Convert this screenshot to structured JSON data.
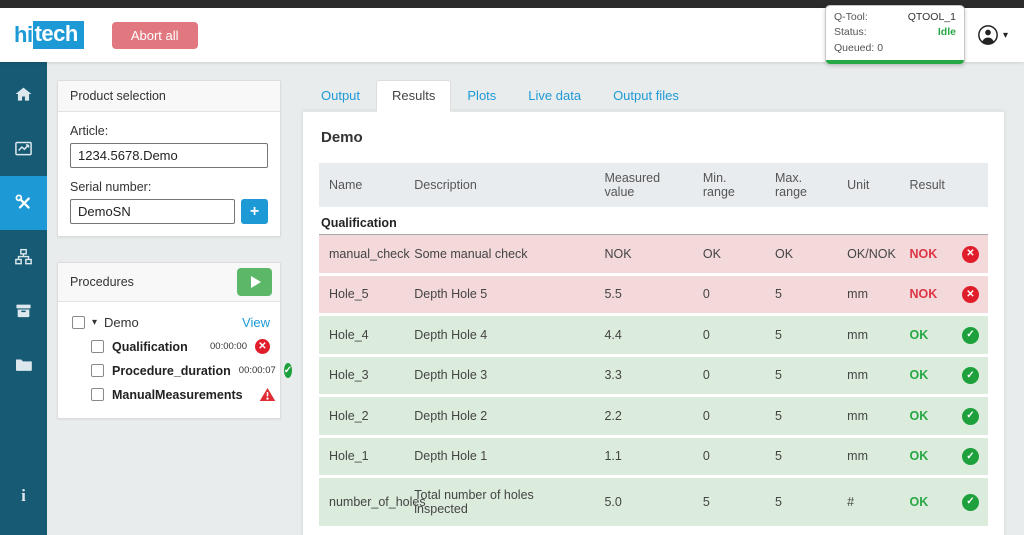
{
  "header": {
    "logo_part1": "hi",
    "logo_part2": "tech",
    "abort_label": "Abort all",
    "qtool": {
      "label": "Q-Tool:",
      "value": "QTOOL_1"
    },
    "status": {
      "label": "Status:",
      "value": "Idle"
    },
    "queued": {
      "label": "Queued:",
      "value": "0"
    }
  },
  "sidebar": {
    "active_item": "tools",
    "items": [
      "home",
      "chart",
      "tools",
      "network",
      "archive",
      "folder",
      "info"
    ]
  },
  "product_selection": {
    "title": "Product selection",
    "article_label": "Article:",
    "article_value": "1234.5678.Demo",
    "serial_label": "Serial number:",
    "serial_value": "DemoSN"
  },
  "procedures": {
    "title": "Procedures",
    "parent": {
      "label": "Demo",
      "view_link": "View"
    },
    "children": [
      {
        "label": "Qualification",
        "time": "00:00:00",
        "status": "nok"
      },
      {
        "label": "Procedure_duration",
        "time": "00:00:07",
        "status": "ok"
      },
      {
        "label": "ManualMeasurements",
        "time": "",
        "status": "warning"
      }
    ]
  },
  "tabs": [
    {
      "label": "Output",
      "active": false
    },
    {
      "label": "Results",
      "active": true
    },
    {
      "label": "Plots",
      "active": false
    },
    {
      "label": "Live data",
      "active": false
    },
    {
      "label": "Output files",
      "active": false
    }
  ],
  "results": {
    "title": "Demo",
    "columns": [
      "Name",
      "Description",
      "Measured value",
      "Min. range",
      "Max. range",
      "Unit",
      "Result"
    ],
    "group_label": "Qualification",
    "rows": [
      {
        "name": "manual_check",
        "description": "Some manual check",
        "measured": "NOK",
        "min": "OK",
        "max": "OK",
        "unit": "OK/NOK",
        "result": "NOK",
        "status": "nok"
      },
      {
        "name": "Hole_5",
        "description": "Depth Hole 5",
        "measured": "5.5",
        "min": "0",
        "max": "5",
        "unit": "mm",
        "result": "NOK",
        "status": "nok"
      },
      {
        "name": "Hole_4",
        "description": "Depth Hole 4",
        "measured": "4.4",
        "min": "0",
        "max": "5",
        "unit": "mm",
        "result": "OK",
        "status": "ok"
      },
      {
        "name": "Hole_3",
        "description": "Depth Hole 3",
        "measured": "3.3",
        "min": "0",
        "max": "5",
        "unit": "mm",
        "result": "OK",
        "status": "ok"
      },
      {
        "name": "Hole_2",
        "description": "Depth Hole 2",
        "measured": "2.2",
        "min": "0",
        "max": "5",
        "unit": "mm",
        "result": "OK",
        "status": "ok"
      },
      {
        "name": "Hole_1",
        "description": "Depth Hole 1",
        "measured": "1.1",
        "min": "0",
        "max": "5",
        "unit": "mm",
        "result": "OK",
        "status": "ok"
      },
      {
        "name": "number_of_holes",
        "description": "Total number of holes inspected",
        "measured": "5.0",
        "min": "5",
        "max": "5",
        "unit": "#",
        "result": "OK",
        "status": "ok"
      }
    ]
  },
  "icons": {
    "ok": "✓",
    "nok": "✕",
    "warning": "!",
    "caret_down": "▾",
    "plus": "+"
  },
  "colors": {
    "accent_blue": "#1d9ad6",
    "sidebar_bg": "#175a73",
    "sidebar_active": "#1d9ad6",
    "abort_red": "#e17880",
    "ok_green": "#28a745",
    "nok_red": "#dc3545",
    "row_ok_bg": "#dcecdc",
    "row_nok_bg": "#f4d9db",
    "status_bar_green": "#28a745"
  }
}
